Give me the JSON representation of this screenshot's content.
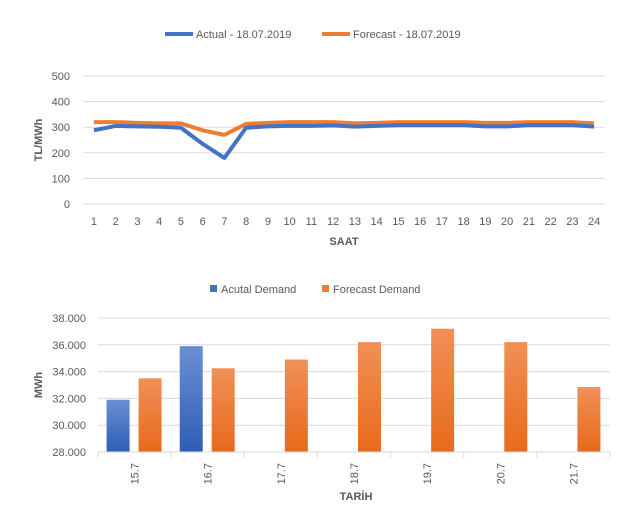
{
  "chart_data": [
    {
      "type": "line",
      "title": "",
      "xlabel": "SAAT",
      "ylabel": "TL/MWh",
      "ylim": [
        0,
        500
      ],
      "yticks": [
        0,
        100,
        200,
        300,
        400,
        500
      ],
      "legend_position": "top",
      "grid": true,
      "x": [
        1,
        2,
        3,
        4,
        5,
        6,
        7,
        8,
        9,
        10,
        11,
        12,
        13,
        14,
        15,
        16,
        17,
        18,
        19,
        20,
        21,
        22,
        23,
        24
      ],
      "series": [
        {
          "name": "Actual - 18.07.2019",
          "color": "#4472C4",
          "values": [
            288,
            305,
            303,
            302,
            298,
            235,
            180,
            298,
            303,
            305,
            305,
            307,
            302,
            305,
            308,
            308,
            308,
            308,
            303,
            303,
            308,
            308,
            308,
            302
          ]
        },
        {
          "name": "Forecast - 18.07.2019",
          "color": "#ED7D31",
          "values": [
            320,
            320,
            317,
            315,
            315,
            288,
            270,
            313,
            317,
            320,
            320,
            320,
            315,
            317,
            320,
            320,
            320,
            320,
            317,
            317,
            320,
            320,
            320,
            315
          ]
        }
      ]
    },
    {
      "type": "bar",
      "title": "",
      "xlabel": "TARİH",
      "ylabel": "MWh",
      "ylim": [
        28000,
        38000
      ],
      "yticks": [
        "28.000",
        "30.000",
        "32.000",
        "34.000",
        "36.000",
        "38.000"
      ],
      "legend_position": "top",
      "grid": true,
      "categories": [
        "15.7",
        "16.7",
        "17.7",
        "18.7",
        "19.7",
        "20.7",
        "21.7"
      ],
      "series": [
        {
          "name": "Acutal Demand",
          "color": "#4472C4",
          "values": [
            31900,
            35900,
            null,
            null,
            null,
            null,
            null
          ]
        },
        {
          "name": "Forecast Demand",
          "color": "#ED7D31",
          "values": [
            33500,
            34250,
            34900,
            36200,
            37200,
            36200,
            32850
          ]
        }
      ]
    }
  ]
}
